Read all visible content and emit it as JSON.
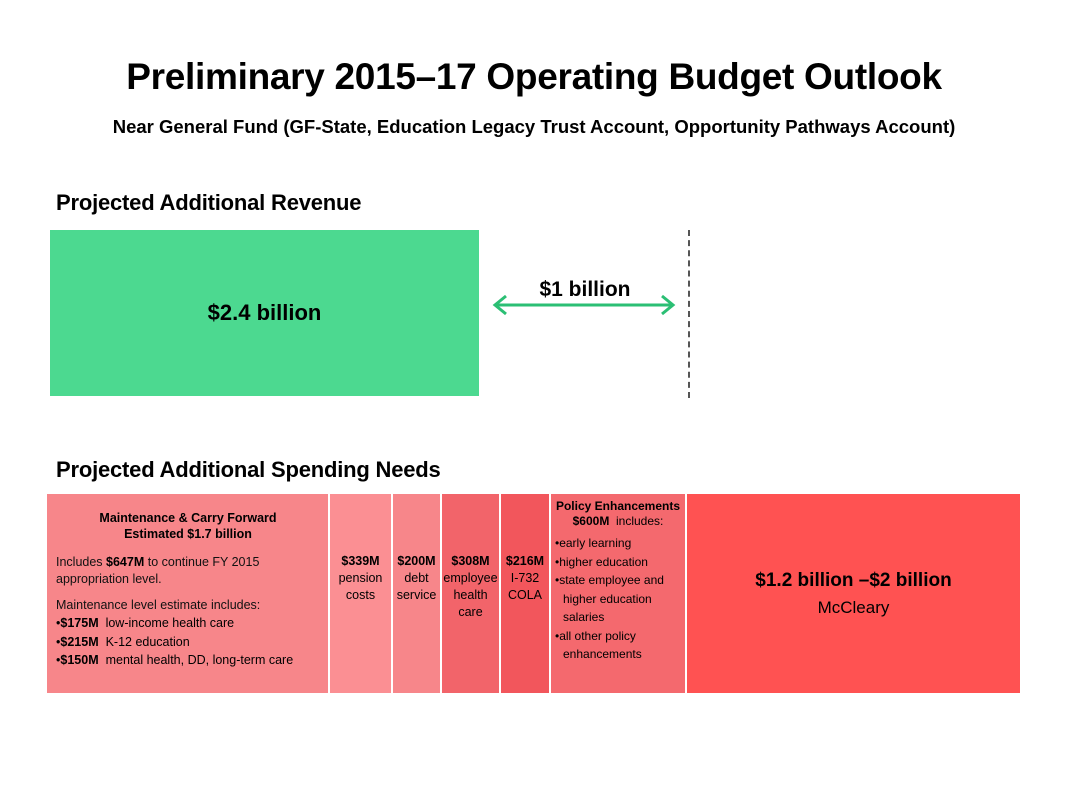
{
  "title": "Preliminary 2015–17 Operating Budget Outlook",
  "subtitle": "Near General Fund (GF-State, Education Legacy Trust Account, Opportunity Pathways Account)",
  "revenue": {
    "heading": "Projected Additional Revenue",
    "amount": "$2.4 billion",
    "gap_label": "$1 billion",
    "color": "#4cd990"
  },
  "spending": {
    "heading": "Projected Additional Spending Needs",
    "maintenance": {
      "title_line1": "Maintenance & Carry Forward",
      "title_line2": "Estimated $1.7 billion",
      "text_prefix": "Includes ",
      "text_amount": "$647M",
      "text_suffix": " to continue FY 2015 appropriation level.",
      "sub_heading": "Maintenance level estimate includes:",
      "items": [
        {
          "amount": "$175M",
          "label": "low-income health care"
        },
        {
          "amount": "$215M",
          "label": "K-12 education"
        },
        {
          "amount": "$150M",
          "label": "mental health, DD, long-term care"
        }
      ]
    },
    "pension": {
      "amount": "$339M",
      "line1": "pension",
      "line2": "costs"
    },
    "debt": {
      "amount": "$200M",
      "line1": "debt",
      "line2": "service"
    },
    "employee_health": {
      "amount": "$308M",
      "line1": "employee",
      "line2": "health",
      "line3": "care"
    },
    "cola": {
      "amount": "$216M",
      "line1": "I-732",
      "line2": "COLA"
    },
    "policy": {
      "title": "Policy Enhancements",
      "amount": "$600M",
      "includes": "includes:",
      "items": [
        "early learning",
        "higher education",
        "state employee and higher education salaries",
        "all other policy enhancements"
      ]
    },
    "mccleary": {
      "amount": "$1.2 billion –$2 billion",
      "label": "McCleary"
    }
  }
}
